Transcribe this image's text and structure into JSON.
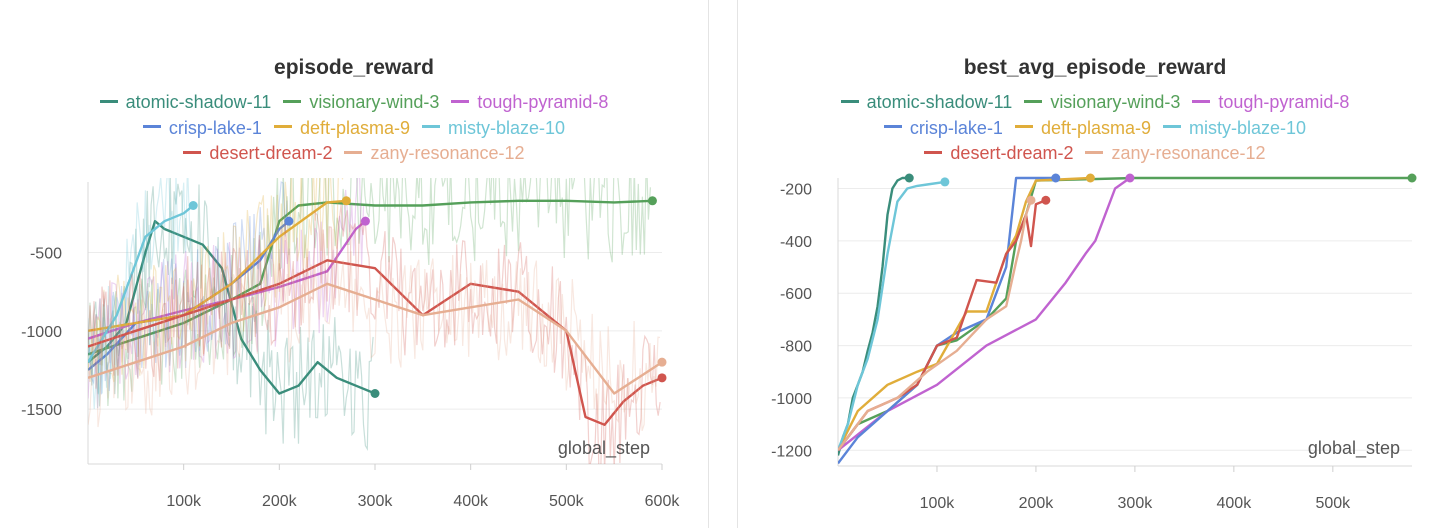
{
  "colors": {
    "atomic-shadow-11": "#3a8d7b",
    "visionary-wind-3": "#55a05a",
    "tough-pyramid-8": "#c063d0",
    "crisp-lake-1": "#5b84d8",
    "deft-plasma-9": "#e0ad3a",
    "misty-blaze-10": "#6ec6d8",
    "desert-dream-2": "#d0554e",
    "zany-resonance-12": "#e6ae92"
  },
  "chart_data": [
    {
      "type": "line",
      "title": "episode_reward",
      "xlabel": "global_step",
      "ylabel": "",
      "xlim": [
        0,
        600000
      ],
      "ylim": [
        -1850,
        -50
      ],
      "x_ticks": [
        100000,
        200000,
        300000,
        400000,
        500000,
        600000
      ],
      "x_tick_labels": [
        "100k",
        "200k",
        "300k",
        "400k",
        "500k",
        "600k"
      ],
      "y_ticks": [
        -500,
        -1000,
        -1500
      ],
      "y_tick_labels": [
        "-500",
        "-1000",
        "-1500"
      ],
      "legend": [
        [
          "atomic-shadow-11",
          "visionary-wind-3",
          "tough-pyramid-8"
        ],
        [
          "crisp-lake-1",
          "deft-plasma-9",
          "misty-blaze-10"
        ],
        [
          "desert-dream-2",
          "zany-resonance-12"
        ]
      ],
      "series": [
        {
          "name": "atomic-shadow-11",
          "x": [
            0,
            20000,
            40000,
            60000,
            70000,
            80000,
            100000,
            120000,
            140000,
            160000,
            180000,
            200000,
            220000,
            240000,
            260000,
            280000,
            300000
          ],
          "y": [
            -1200,
            -1100,
            -950,
            -500,
            -300,
            -350,
            -400,
            -450,
            -600,
            -1050,
            -1250,
            -1400,
            -1350,
            -1200,
            -1300,
            -1350,
            -1400
          ]
        },
        {
          "name": "visionary-wind-3",
          "x": [
            0,
            50000,
            100000,
            150000,
            180000,
            200000,
            220000,
            250000,
            300000,
            350000,
            400000,
            450000,
            500000,
            550000,
            590000
          ],
          "y": [
            -1150,
            -1050,
            -950,
            -800,
            -700,
            -300,
            -200,
            -180,
            -200,
            -200,
            -180,
            -170,
            -170,
            -180,
            -170
          ]
        },
        {
          "name": "tough-pyramid-8",
          "x": [
            0,
            50000,
            100000,
            150000,
            200000,
            250000,
            280000,
            290000
          ],
          "y": [
            -1050,
            -950,
            -870,
            -800,
            -720,
            -620,
            -350,
            -300
          ]
        },
        {
          "name": "crisp-lake-1",
          "x": [
            0,
            20000,
            50000,
            100000,
            150000,
            180000,
            200000,
            210000
          ],
          "y": [
            -1250,
            -1150,
            -950,
            -900,
            -700,
            -550,
            -350,
            -300
          ]
        },
        {
          "name": "deft-plasma-9",
          "x": [
            0,
            50000,
            100000,
            150000,
            200000,
            250000,
            270000
          ],
          "y": [
            -1000,
            -950,
            -900,
            -700,
            -400,
            -180,
            -170
          ]
        },
        {
          "name": "misty-blaze-10",
          "x": [
            0,
            30000,
            60000,
            80000,
            100000,
            110000
          ],
          "y": [
            -1200,
            -900,
            -400,
            -300,
            -250,
            -200
          ]
        },
        {
          "name": "desert-dream-2",
          "x": [
            0,
            50000,
            100000,
            150000,
            200000,
            250000,
            300000,
            350000,
            400000,
            450000,
            500000,
            520000,
            540000,
            560000,
            580000,
            600000
          ],
          "y": [
            -1100,
            -1000,
            -900,
            -800,
            -700,
            -550,
            -600,
            -900,
            -700,
            -750,
            -1000,
            -1550,
            -1600,
            -1450,
            -1350,
            -1300
          ]
        },
        {
          "name": "zany-resonance-12",
          "x": [
            0,
            50000,
            100000,
            150000,
            200000,
            250000,
            300000,
            350000,
            400000,
            450000,
            500000,
            550000,
            600000
          ],
          "y": [
            -1300,
            -1200,
            -1100,
            -950,
            -850,
            -700,
            -800,
            -900,
            -850,
            -800,
            -1000,
            -1400,
            -1200
          ]
        }
      ]
    },
    {
      "type": "line",
      "title": "best_avg_episode_reward",
      "xlabel": "global_step",
      "ylabel": "",
      "xlim": [
        0,
        580000
      ],
      "ylim": [
        -1260,
        -160
      ],
      "x_ticks": [
        100000,
        200000,
        300000,
        400000,
        500000
      ],
      "x_tick_labels": [
        "100k",
        "200k",
        "300k",
        "400k",
        "500k"
      ],
      "y_ticks": [
        -200,
        -400,
        -600,
        -800,
        -1000,
        -1200
      ],
      "y_tick_labels": [
        "-200",
        "-400",
        "-600",
        "-800",
        "-1000",
        "-1200"
      ],
      "legend": [
        [
          "atomic-shadow-11",
          "visionary-wind-3",
          "tough-pyramid-8"
        ],
        [
          "crisp-lake-1",
          "deft-plasma-9",
          "misty-blaze-10"
        ],
        [
          "desert-dream-2",
          "zany-resonance-12"
        ]
      ],
      "series": [
        {
          "name": "atomic-shadow-11",
          "x": [
            0,
            5000,
            10000,
            15000,
            20000,
            25000,
            30000,
            35000,
            40000,
            45000,
            50000,
            55000,
            60000,
            65000,
            72000
          ],
          "y": [
            -1220,
            -1150,
            -1100,
            -1000,
            -950,
            -900,
            -820,
            -750,
            -650,
            -500,
            -300,
            -200,
            -170,
            -160,
            -160
          ]
        },
        {
          "name": "visionary-wind-3",
          "x": [
            0,
            20000,
            50000,
            80000,
            100000,
            120000,
            150000,
            170000,
            180000,
            190000,
            200000,
            300000,
            400000,
            500000,
            580000
          ],
          "y": [
            -1200,
            -1100,
            -1050,
            -950,
            -800,
            -780,
            -700,
            -620,
            -400,
            -300,
            -170,
            -160,
            -160,
            -160,
            -160
          ]
        },
        {
          "name": "tough-pyramid-8",
          "x": [
            0,
            50000,
            100000,
            150000,
            200000,
            230000,
            250000,
            260000,
            270000,
            280000,
            295000
          ],
          "y": [
            -1200,
            -1050,
            -950,
            -800,
            -700,
            -560,
            -450,
            -400,
            -300,
            -200,
            -160
          ]
        },
        {
          "name": "crisp-lake-1",
          "x": [
            0,
            20000,
            50000,
            80000,
            100000,
            120000,
            150000,
            170000,
            180000,
            190000,
            200000,
            220000
          ],
          "y": [
            -1250,
            -1150,
            -1050,
            -950,
            -800,
            -750,
            -700,
            -500,
            -160,
            -160,
            -160,
            -160
          ]
        },
        {
          "name": "deft-plasma-9",
          "x": [
            0,
            20000,
            50000,
            80000,
            100000,
            130000,
            150000,
            170000,
            180000,
            190000,
            200000,
            255000
          ],
          "y": [
            -1200,
            -1050,
            -950,
            -900,
            -870,
            -670,
            -670,
            -450,
            -380,
            -250,
            -170,
            -160
          ]
        },
        {
          "name": "misty-blaze-10",
          "x": [
            0,
            10000,
            20000,
            30000,
            40000,
            50000,
            60000,
            70000,
            80000,
            90000,
            108000
          ],
          "y": [
            -1200,
            -1100,
            -950,
            -850,
            -700,
            -450,
            -250,
            -200,
            -190,
            -185,
            -175
          ]
        },
        {
          "name": "desert-dream-2",
          "x": [
            0,
            30000,
            60000,
            80000,
            100000,
            120000,
            140000,
            160000,
            170000,
            180000,
            190000,
            195000,
            200000,
            210000
          ],
          "y": [
            -1200,
            -1050,
            -1000,
            -950,
            -800,
            -770,
            -550,
            -560,
            -450,
            -400,
            -300,
            -420,
            -260,
            -245
          ]
        },
        {
          "name": "zany-resonance-12",
          "x": [
            0,
            30000,
            60000,
            90000,
            120000,
            150000,
            170000,
            180000,
            185000,
            190000,
            195000
          ],
          "y": [
            -1200,
            -1050,
            -1000,
            -900,
            -820,
            -700,
            -650,
            -480,
            -400,
            -300,
            -245
          ]
        }
      ]
    }
  ]
}
